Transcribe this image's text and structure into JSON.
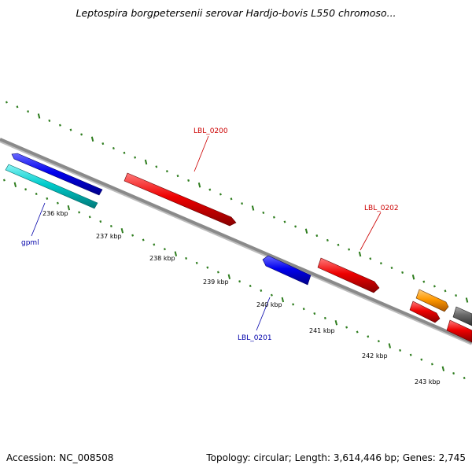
{
  "title": "Leptospira borgpetersenii serovar Hardjo-bovis L550 chromoso...",
  "footer": {
    "accession": "Accession: NC_008508",
    "summary": "Topology: circular; Length: 3,614,446 bp; Genes: 2,745"
  },
  "colors": {
    "backbone": "#8a8a8a",
    "tick": "#2e7d1e",
    "forward_label": "#cc0000",
    "reverse_label": "#0000aa"
  },
  "scale": {
    "tick_labels": [
      "236 kbp",
      "237 kbp",
      "238 kbp",
      "239 kbp",
      "240 kbp",
      "241 kbp",
      "242 kbp",
      "243 kbp"
    ]
  },
  "features": [
    {
      "name": "gpmI",
      "label_shown": "gpml",
      "strand": "reverse",
      "color": "#0000ee"
    },
    {
      "name": "gene-cyan",
      "label_shown": "",
      "strand": "reverse",
      "color": "#00cccc"
    },
    {
      "name": "LBL_0200",
      "label_shown": "LBL_0200",
      "strand": "forward",
      "color": "#ee0000"
    },
    {
      "name": "LBL_0201",
      "label_shown": "LBL_0201",
      "strand": "reverse",
      "color": "#0000ee"
    },
    {
      "name": "LBL_0202",
      "label_shown": "LBL_0202",
      "strand": "forward",
      "color": "#ee0000"
    },
    {
      "name": "gene-orange",
      "label_shown": "",
      "strand": "forward",
      "color": "#ff9900"
    },
    {
      "name": "gene-red-a",
      "label_shown": "",
      "strand": "forward",
      "color": "#ee0000"
    },
    {
      "name": "gene-red-b",
      "label_shown": "",
      "strand": "forward",
      "color": "#ee0000"
    },
    {
      "name": "gene-gray",
      "label_shown": "",
      "strand": "forward",
      "color": "#666666"
    }
  ]
}
